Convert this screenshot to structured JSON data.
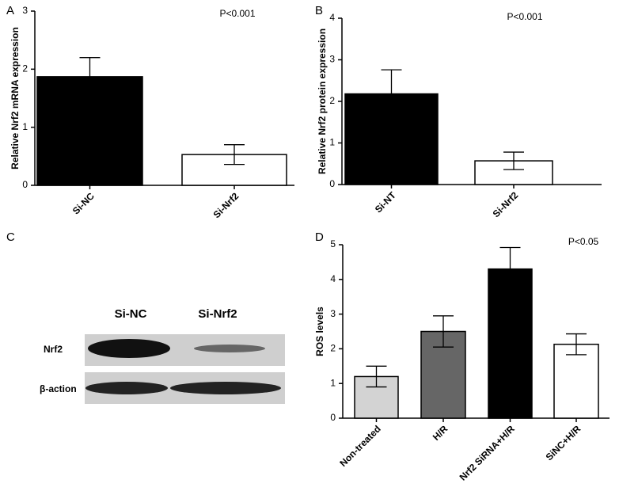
{
  "chart_data": [
    {
      "type": "bar",
      "panel": "A",
      "ylabel": "Relative Nrf2 mRNA expression",
      "annotation": "P<0.001",
      "categories": [
        "Si-NC",
        "Si-Nrf2"
      ],
      "values": [
        1.87,
        0.53
      ],
      "errors": [
        0.33,
        0.17
      ],
      "colors": [
        "#000000",
        "#ffffff"
      ],
      "ylim": [
        0,
        3
      ],
      "yticks": [
        0,
        1,
        2,
        3
      ]
    },
    {
      "type": "bar",
      "panel": "B",
      "ylabel": "Relative Nrf2 protein expression",
      "annotation": "P<0.001",
      "categories": [
        "Si-NT",
        "Si-Nrf2"
      ],
      "values": [
        2.18,
        0.57
      ],
      "errors": [
        0.58,
        0.21
      ],
      "colors": [
        "#000000",
        "#ffffff"
      ],
      "ylim": [
        0,
        4
      ],
      "yticks": [
        0,
        1,
        2,
        3,
        4
      ]
    },
    {
      "type": "bar",
      "panel": "D",
      "ylabel": "ROS levels",
      "annotation": "P<0.05",
      "categories": [
        "Non-treated",
        "H/R",
        "Nrf2 SiRNA+H/R",
        "SiNC+H/R"
      ],
      "values": [
        1.2,
        2.5,
        4.3,
        2.13
      ],
      "errors": [
        0.3,
        0.45,
        0.62,
        0.3
      ],
      "colors": [
        "#d3d3d3",
        "#666666",
        "#000000",
        "#ffffff"
      ],
      "ylim": [
        0,
        5
      ],
      "yticks": [
        0,
        1,
        2,
        3,
        4,
        5
      ]
    }
  ],
  "blot": {
    "panel": "C",
    "lanes": [
      "Si-NC",
      "Si-Nrf2"
    ],
    "rows": [
      "Nrf2",
      "β-action"
    ]
  }
}
